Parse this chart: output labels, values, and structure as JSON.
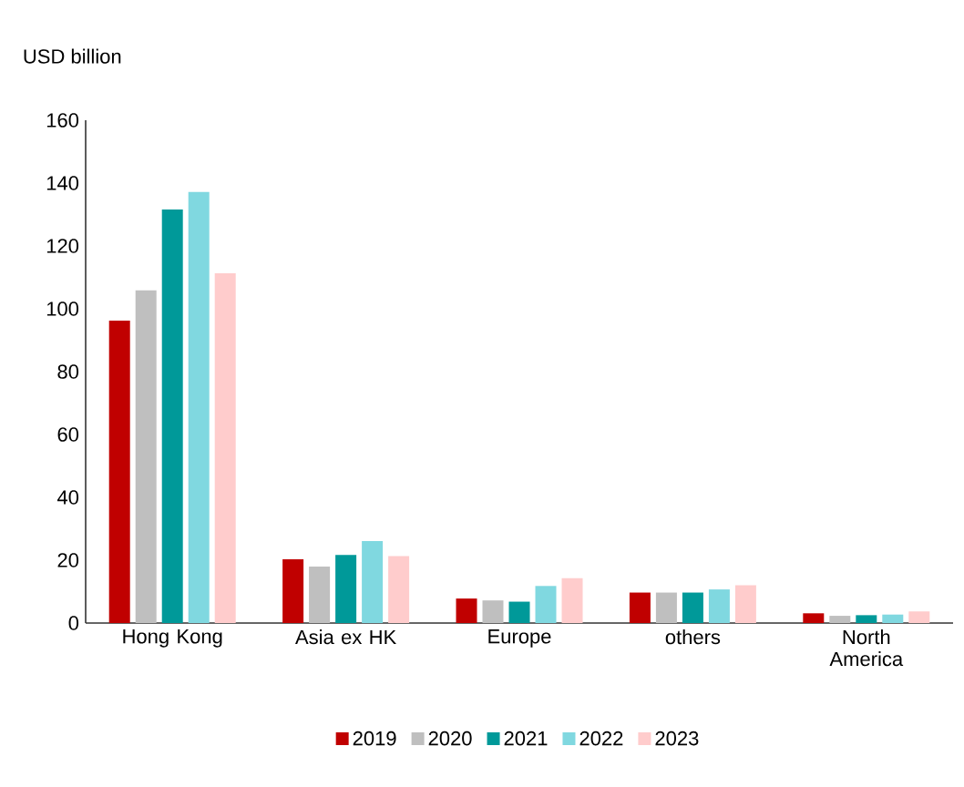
{
  "chart_data": {
    "type": "bar",
    "ylabel": "USD billion",
    "categories": [
      "Hong Kong",
      "Asia ex HK",
      "Europe",
      "others",
      "North America"
    ],
    "ylim": [
      0,
      160
    ],
    "yticks": [
      0,
      20,
      40,
      60,
      80,
      100,
      120,
      140,
      160
    ],
    "grid": false,
    "legend": "bottom",
    "series": [
      {
        "name": "2019",
        "color": "#c00000",
        "values": [
          96.2,
          20.3,
          7.8,
          9.7,
          3.1
        ]
      },
      {
        "name": "2020",
        "color": "#bfbfbf",
        "values": [
          105.9,
          18.0,
          7.2,
          9.7,
          2.3
        ]
      },
      {
        "name": "2021",
        "color": "#009999",
        "values": [
          131.6,
          21.7,
          6.8,
          9.7,
          2.5
        ]
      },
      {
        "name": "2022",
        "color": "#80d8e0",
        "values": [
          137.2,
          26.1,
          11.8,
          10.7,
          2.7
        ]
      },
      {
        "name": "2023",
        "color": "#ffcccc",
        "values": [
          111.3,
          21.3,
          14.3,
          12.0,
          3.7
        ]
      }
    ]
  }
}
